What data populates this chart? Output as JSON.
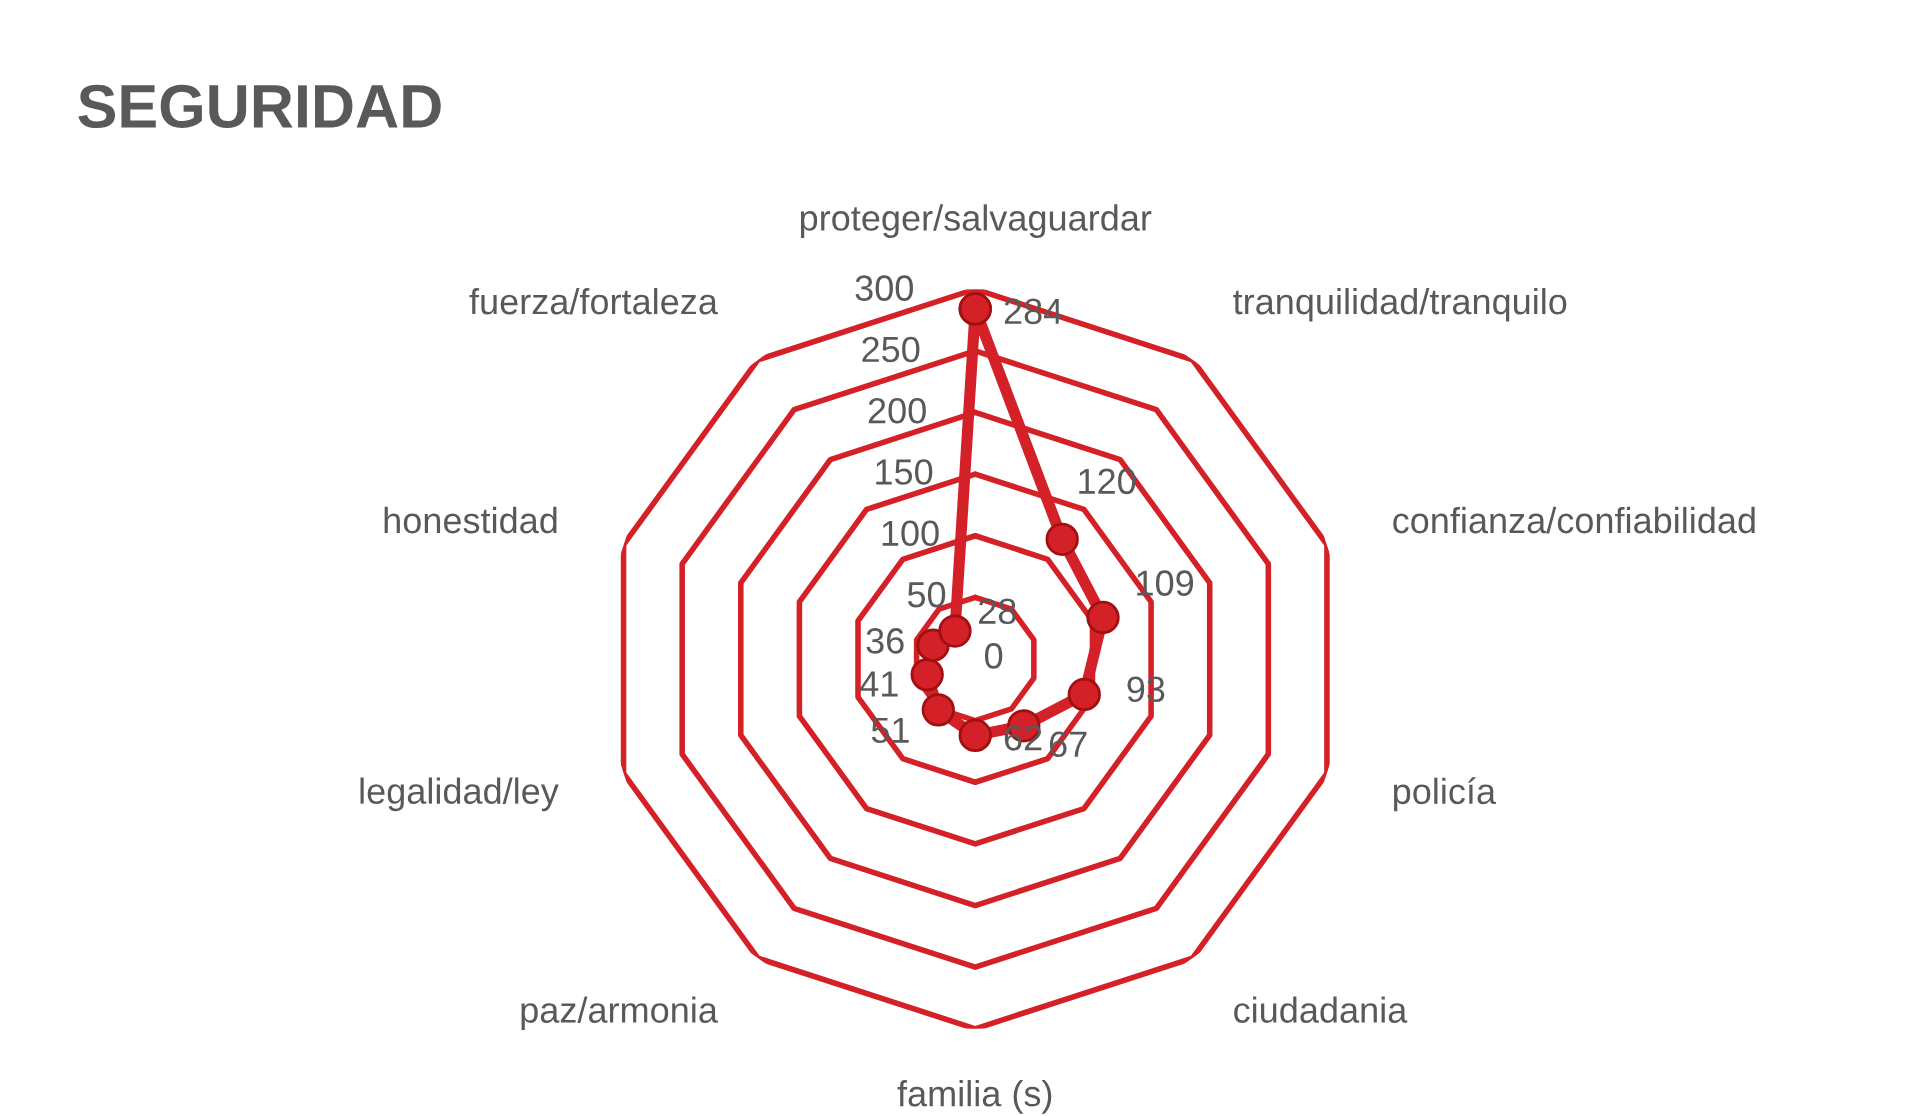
{
  "chart_data": {
    "type": "radar",
    "title": "SEGURIDAD",
    "categories": [
      "proteger/salvaguardar",
      "tranquilidad/tranquilo",
      "confianza/confiabilidad",
      "policía",
      "ciudadania",
      "familia (s)",
      "paz/armonia",
      "legalidad/ley",
      "honestidad",
      "fuerza/fortaleza"
    ],
    "series": [
      {
        "color": "#d42027",
        "values": [
          284,
          120,
          109,
          93,
          67,
          62,
          51,
          41,
          36,
          28
        ]
      }
    ],
    "ylim": [
      0,
      300
    ],
    "yticks": [
      0,
      50,
      100,
      150,
      200,
      250,
      300
    ],
    "grid": true,
    "data_labels": true,
    "marker": "circle",
    "line_style": "solid"
  }
}
